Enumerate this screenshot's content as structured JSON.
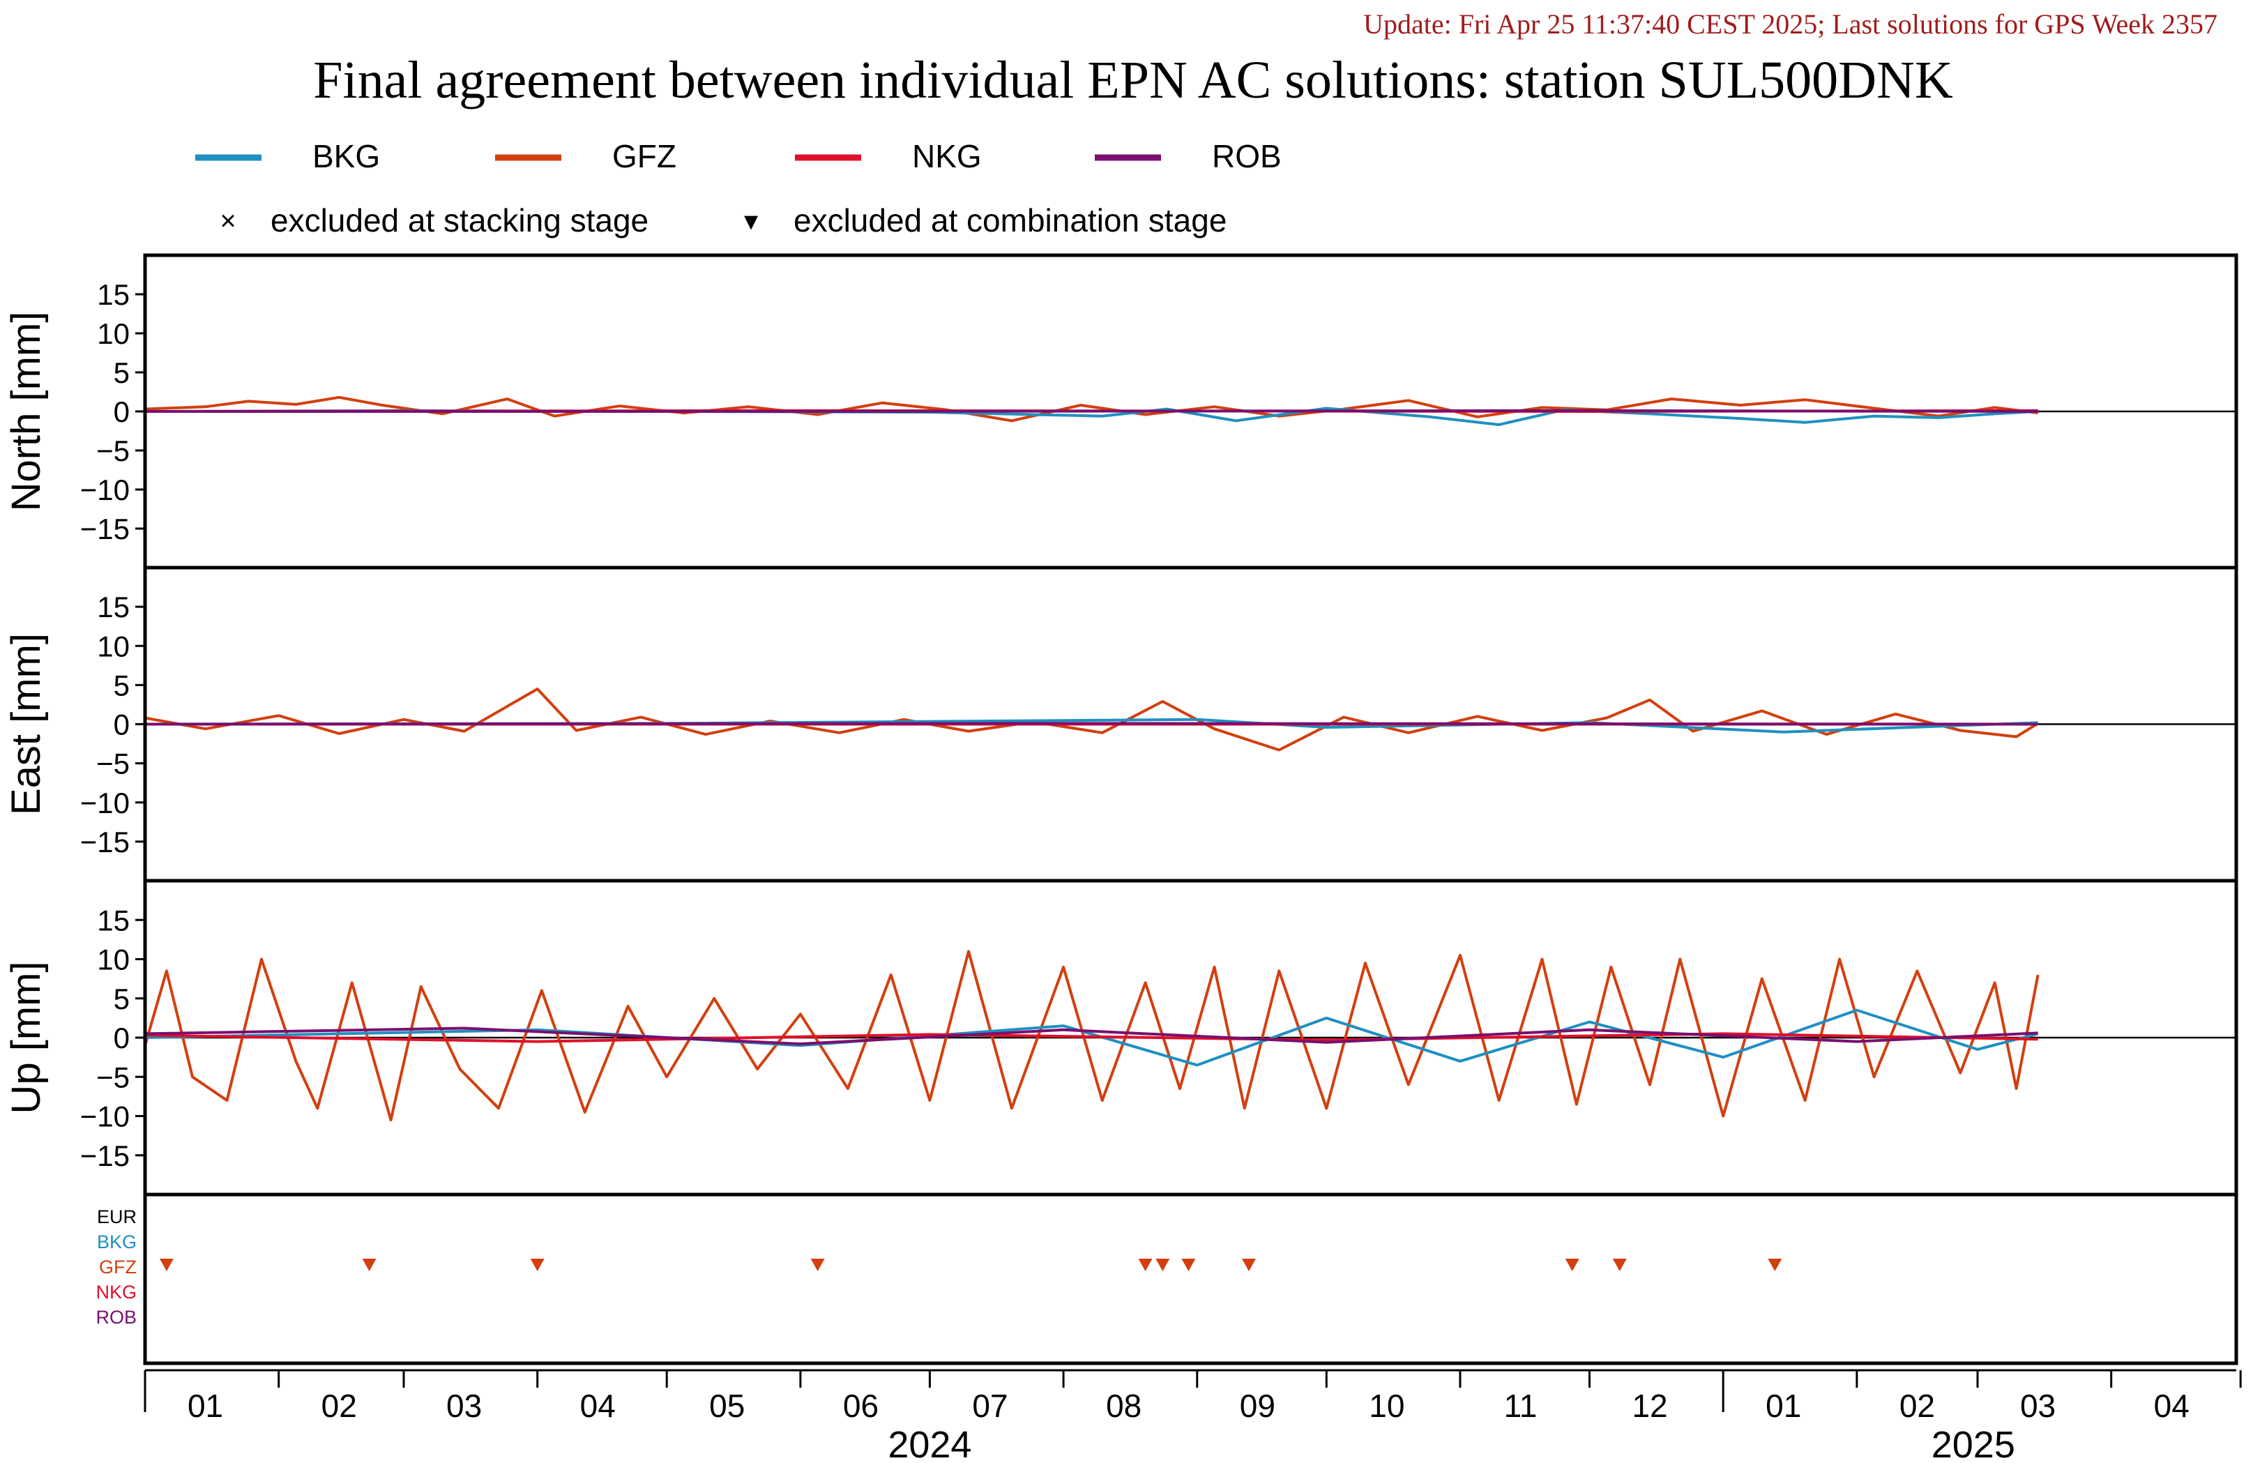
{
  "update_text": "Update: Fri Apr 25 11:37:40 CEST 2025; Last solutions for GPS Week 2357",
  "colors": {
    "update_text": "#a01c1c",
    "axis": "#000000",
    "BKG": "#1f90c0",
    "GFZ": "#d2400f",
    "NKG": "#e0102a",
    "ROB": "#7a0f6f",
    "EUR": "#000000"
  },
  "legend": {
    "series": [
      {
        "name": "BKG",
        "color_key": "BKG"
      },
      {
        "name": "GFZ",
        "color_key": "GFZ"
      },
      {
        "name": "NKG",
        "color_key": "NKG"
      },
      {
        "name": "ROB",
        "color_key": "ROB"
      }
    ],
    "markers": [
      {
        "symbol": "×",
        "label": "excluded at stacking stage"
      },
      {
        "symbol": "▾",
        "label": "excluded at combination stage"
      }
    ]
  },
  "chart_data": {
    "type": "line",
    "title": "Final agreement between individual EPN AC solutions: station SUL500DNK",
    "x_axis": {
      "range": [
        "2024-01-01",
        "2025-04-30"
      ],
      "month_ticks": [
        "01",
        "02",
        "03",
        "04",
        "05",
        "06",
        "07",
        "08",
        "09",
        "10",
        "11",
        "12",
        "01",
        "02",
        "03",
        "04"
      ],
      "year_labels": [
        "2024",
        "2025"
      ]
    },
    "panels": [
      {
        "ylabel": "North [mm]",
        "ylim": [
          -20,
          20
        ],
        "yticks": [
          15,
          10,
          5,
          0,
          -5,
          -10,
          -15
        ],
        "series": [
          {
            "name": "GFZ",
            "points": [
              [
                "2024-01-01",
                0.3
              ],
              [
                "2024-01-15",
                0.6
              ],
              [
                "2024-01-25",
                1.3
              ],
              [
                "2024-02-05",
                0.9
              ],
              [
                "2024-02-15",
                1.8
              ],
              [
                "2024-02-25",
                0.8
              ],
              [
                "2024-03-10",
                -0.3
              ],
              [
                "2024-03-25",
                1.6
              ],
              [
                "2024-04-05",
                -0.6
              ],
              [
                "2024-04-20",
                0.7
              ],
              [
                "2024-05-05",
                -0.2
              ],
              [
                "2024-05-20",
                0.6
              ],
              [
                "2024-06-05",
                -0.4
              ],
              [
                "2024-06-20",
                1.1
              ],
              [
                "2024-07-05",
                0.2
              ],
              [
                "2024-07-20",
                -1.2
              ],
              [
                "2024-08-05",
                0.8
              ],
              [
                "2024-08-20",
                -0.4
              ],
              [
                "2024-09-05",
                0.6
              ],
              [
                "2024-09-20",
                -0.6
              ],
              [
                "2024-10-05",
                0.3
              ],
              [
                "2024-10-20",
                1.4
              ],
              [
                "2024-11-05",
                -0.7
              ],
              [
                "2024-11-20",
                0.5
              ],
              [
                "2024-12-05",
                0.2
              ],
              [
                "2024-12-20",
                1.6
              ],
              [
                "2025-01-05",
                0.8
              ],
              [
                "2025-01-20",
                1.5
              ],
              [
                "2025-02-05",
                0.4
              ],
              [
                "2025-02-20",
                -0.6
              ],
              [
                "2025-03-05",
                0.5
              ],
              [
                "2025-03-15",
                -0.2
              ]
            ]
          },
          {
            "name": "BKG",
            "points": [
              [
                "2024-01-01",
                0.0
              ],
              [
                "2024-03-01",
                0.1
              ],
              [
                "2024-05-01",
                0.0
              ],
              [
                "2024-07-01",
                -0.1
              ],
              [
                "2024-08-10",
                -0.6
              ],
              [
                "2024-08-25",
                0.3
              ],
              [
                "2024-09-10",
                -1.2
              ],
              [
                "2024-10-01",
                0.4
              ],
              [
                "2024-10-25",
                -0.7
              ],
              [
                "2024-11-10",
                -1.7
              ],
              [
                "2024-11-25",
                0.2
              ],
              [
                "2024-12-15",
                -0.3
              ],
              [
                "2025-01-05",
                -0.9
              ],
              [
                "2025-01-20",
                -1.4
              ],
              [
                "2025-02-05",
                -0.6
              ],
              [
                "2025-02-20",
                -0.8
              ],
              [
                "2025-03-05",
                -0.3
              ],
              [
                "2025-03-15",
                0.0
              ]
            ]
          },
          {
            "name": "NKG",
            "points": [
              [
                "2024-01-01",
                0.0
              ],
              [
                "2024-06-01",
                0.1
              ],
              [
                "2024-12-01",
                0.0
              ],
              [
                "2025-03-15",
                0.1
              ]
            ]
          },
          {
            "name": "ROB",
            "points": [
              [
                "2024-01-01",
                0.0
              ],
              [
                "2024-06-01",
                0.0
              ],
              [
                "2024-12-01",
                0.1
              ],
              [
                "2025-03-15",
                0.0
              ]
            ]
          }
        ]
      },
      {
        "ylabel": "East [mm]",
        "ylim": [
          -20,
          20
        ],
        "yticks": [
          15,
          10,
          5,
          0,
          -5,
          -10,
          -15
        ],
        "series": [
          {
            "name": "GFZ",
            "points": [
              [
                "2024-01-01",
                0.8
              ],
              [
                "2024-01-15",
                -0.6
              ],
              [
                "2024-02-01",
                1.1
              ],
              [
                "2024-02-15",
                -1.2
              ],
              [
                "2024-03-01",
                0.6
              ],
              [
                "2024-03-15",
                -0.9
              ],
              [
                "2024-04-01",
                4.5
              ],
              [
                "2024-04-10",
                -0.8
              ],
              [
                "2024-04-25",
                0.9
              ],
              [
                "2024-05-10",
                -1.3
              ],
              [
                "2024-05-25",
                0.4
              ],
              [
                "2024-06-10",
                -1.1
              ],
              [
                "2024-06-25",
                0.6
              ],
              [
                "2024-07-10",
                -0.9
              ],
              [
                "2024-07-25",
                0.3
              ],
              [
                "2024-08-10",
                -1.1
              ],
              [
                "2024-08-24",
                2.9
              ],
              [
                "2024-09-05",
                -0.6
              ],
              [
                "2024-09-20",
                -3.3
              ],
              [
                "2024-10-05",
                0.9
              ],
              [
                "2024-10-20",
                -1.1
              ],
              [
                "2024-11-05",
                1.0
              ],
              [
                "2024-11-20",
                -0.8
              ],
              [
                "2024-12-05",
                0.8
              ],
              [
                "2024-12-15",
                3.1
              ],
              [
                "2024-12-25",
                -0.9
              ],
              [
                "2025-01-10",
                1.7
              ],
              [
                "2025-01-25",
                -1.3
              ],
              [
                "2025-02-10",
                1.3
              ],
              [
                "2025-02-25",
                -0.8
              ],
              [
                "2025-03-10",
                -1.6
              ],
              [
                "2025-03-15",
                0.1
              ]
            ]
          },
          {
            "name": "BKG",
            "points": [
              [
                "2024-01-01",
                0.0
              ],
              [
                "2024-05-01",
                0.1
              ],
              [
                "2024-09-01",
                0.6
              ],
              [
                "2024-10-01",
                -0.4
              ],
              [
                "2024-12-01",
                0.2
              ],
              [
                "2025-01-15",
                -1.0
              ],
              [
                "2025-03-15",
                0.2
              ]
            ]
          },
          {
            "name": "NKG",
            "points": [
              [
                "2024-01-01",
                0.0
              ],
              [
                "2024-08-01",
                0.0
              ],
              [
                "2025-03-15",
                0.0
              ]
            ]
          },
          {
            "name": "ROB",
            "points": [
              [
                "2024-01-01",
                0.0
              ],
              [
                "2024-08-01",
                0.1
              ],
              [
                "2025-03-15",
                0.0
              ]
            ]
          }
        ]
      },
      {
        "ylabel": "Up [mm]",
        "ylim": [
          -20,
          20
        ],
        "yticks": [
          15,
          10,
          5,
          0,
          -5,
          -10,
          -15
        ],
        "series": [
          {
            "name": "GFZ",
            "points": [
              [
                "2024-01-01",
                -1.0
              ],
              [
                "2024-01-06",
                8.5
              ],
              [
                "2024-01-12",
                -5.0
              ],
              [
                "2024-01-20",
                -8.0
              ],
              [
                "2024-01-28",
                10.0
              ],
              [
                "2024-02-05",
                -3.0
              ],
              [
                "2024-02-10",
                -9.0
              ],
              [
                "2024-02-18",
                7.0
              ],
              [
                "2024-02-27",
                -10.5
              ],
              [
                "2024-03-05",
                6.5
              ],
              [
                "2024-03-14",
                -4.0
              ],
              [
                "2024-03-23",
                -9.0
              ],
              [
                "2024-04-02",
                6.0
              ],
              [
                "2024-04-12",
                -9.5
              ],
              [
                "2024-04-22",
                4.0
              ],
              [
                "2024-05-01",
                -5.0
              ],
              [
                "2024-05-12",
                5.0
              ],
              [
                "2024-05-22",
                -4.0
              ],
              [
                "2024-06-01",
                3.0
              ],
              [
                "2024-06-12",
                -6.5
              ],
              [
                "2024-06-22",
                8.0
              ],
              [
                "2024-07-01",
                -8.0
              ],
              [
                "2024-07-10",
                11.0
              ],
              [
                "2024-07-20",
                -9.0
              ],
              [
                "2024-08-01",
                9.0
              ],
              [
                "2024-08-10",
                -8.0
              ],
              [
                "2024-08-20",
                7.0
              ],
              [
                "2024-08-28",
                -6.5
              ],
              [
                "2024-09-05",
                9.0
              ],
              [
                "2024-09-12",
                -9.0
              ],
              [
                "2024-09-20",
                8.5
              ],
              [
                "2024-10-01",
                -9.0
              ],
              [
                "2024-10-10",
                9.5
              ],
              [
                "2024-10-20",
                -6.0
              ],
              [
                "2024-11-01",
                10.5
              ],
              [
                "2024-11-10",
                -8.0
              ],
              [
                "2024-11-20",
                10.0
              ],
              [
                "2024-11-28",
                -8.5
              ],
              [
                "2024-12-06",
                9.0
              ],
              [
                "2024-12-15",
                -6.0
              ],
              [
                "2024-12-22",
                10.0
              ],
              [
                "2025-01-01",
                -10.0
              ],
              [
                "2025-01-10",
                7.5
              ],
              [
                "2025-01-20",
                -8.0
              ],
              [
                "2025-01-28",
                10.0
              ],
              [
                "2025-02-05",
                -5.0
              ],
              [
                "2025-02-15",
                8.5
              ],
              [
                "2025-02-25",
                -4.5
              ],
              [
                "2025-03-05",
                7.0
              ],
              [
                "2025-03-10",
                -6.5
              ],
              [
                "2025-03-15",
                8.0
              ]
            ]
          },
          {
            "name": "BKG",
            "points": [
              [
                "2024-01-01",
                0.0
              ],
              [
                "2024-04-01",
                1.0
              ],
              [
                "2024-06-01",
                -1.0
              ],
              [
                "2024-08-01",
                1.5
              ],
              [
                "2024-09-01",
                -3.5
              ],
              [
                "2024-10-01",
                2.5
              ],
              [
                "2024-11-01",
                -3.0
              ],
              [
                "2024-12-01",
                2.0
              ],
              [
                "2025-01-01",
                -2.5
              ],
              [
                "2025-02-01",
                3.5
              ],
              [
                "2025-03-01",
                -1.5
              ],
              [
                "2025-03-15",
                0.5
              ]
            ]
          },
          {
            "name": "NKG",
            "points": [
              [
                "2024-01-01",
                0.3
              ],
              [
                "2024-04-01",
                -0.5
              ],
              [
                "2024-07-01",
                0.4
              ],
              [
                "2024-10-01",
                -0.3
              ],
              [
                "2025-01-01",
                0.5
              ],
              [
                "2025-03-15",
                -0.2
              ]
            ]
          },
          {
            "name": "ROB",
            "points": [
              [
                "2024-01-01",
                0.5
              ],
              [
                "2024-03-15",
                1.2
              ],
              [
                "2024-06-01",
                -0.8
              ],
              [
                "2024-08-01",
                1.0
              ],
              [
                "2024-10-01",
                -0.6
              ],
              [
                "2024-12-01",
                1.0
              ],
              [
                "2025-02-01",
                -0.5
              ],
              [
                "2025-03-15",
                0.6
              ]
            ]
          }
        ]
      }
    ],
    "exclusions_panel": {
      "rows": [
        "EUR",
        "BKG",
        "GFZ",
        "NKG",
        "ROB"
      ],
      "combination_stage_GFZ": [
        "2024-01-06",
        "2024-02-22",
        "2024-04-01",
        "2024-06-05",
        "2024-08-20",
        "2024-08-24",
        "2024-08-30",
        "2024-09-13",
        "2024-11-27",
        "2024-12-08",
        "2025-01-13"
      ]
    }
  }
}
